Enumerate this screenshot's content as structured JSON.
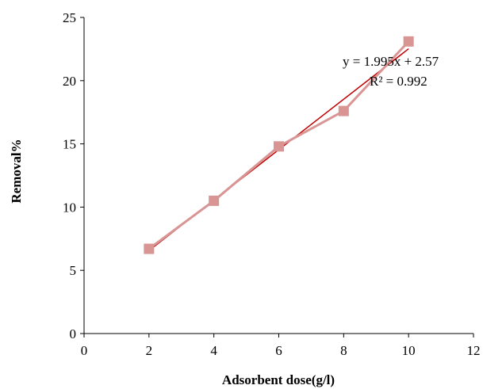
{
  "chart_data": {
    "type": "scatter",
    "xlabel": "Adsorbent dose(g/l)",
    "ylabel": "Removal%",
    "xlim": [
      0,
      12
    ],
    "ylim": [
      0,
      25
    ],
    "xticks": [
      0,
      2,
      4,
      6,
      8,
      10,
      12
    ],
    "yticks": [
      0,
      5,
      10,
      15,
      20,
      25
    ],
    "grid": false,
    "series": [
      {
        "x": [
          2,
          4,
          6,
          8,
          10
        ],
        "y": [
          6.7,
          10.5,
          14.8,
          17.6,
          23.1
        ],
        "color": "#d99594",
        "marker": "square",
        "connected": true
      }
    ],
    "trendline": {
      "slope": 1.995,
      "intercept": 2.57,
      "x_range": [
        2,
        10
      ],
      "color": "#c00000",
      "equation_label": "y = 1.995x + 2.57",
      "r2_label": "R² = 0.992"
    }
  }
}
